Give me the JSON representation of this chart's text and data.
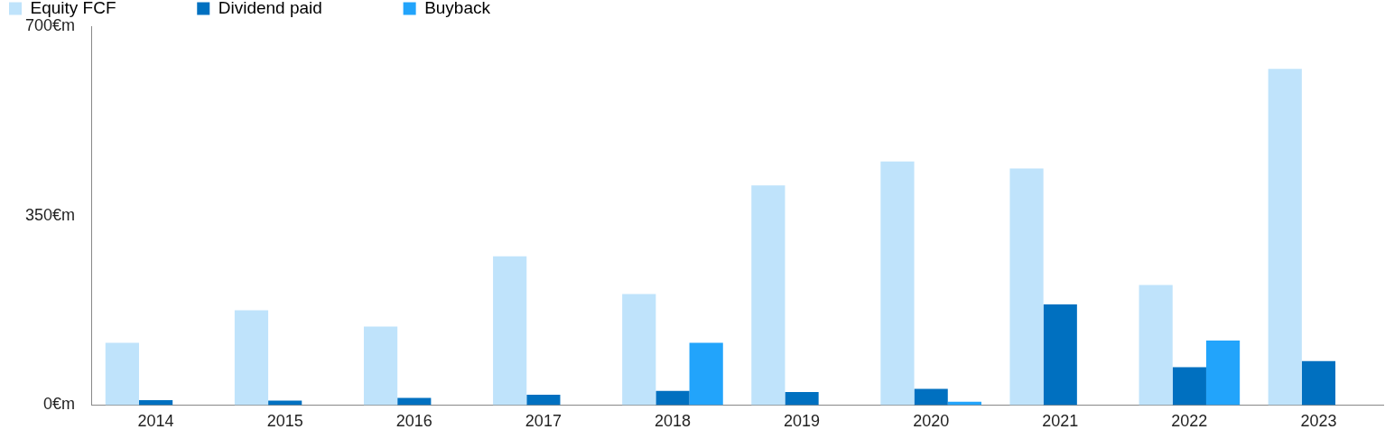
{
  "chart_data": {
    "type": "bar",
    "categories": [
      "2014",
      "2015",
      "2016",
      "2017",
      "2018",
      "2019",
      "2020",
      "2021",
      "2022",
      "2023"
    ],
    "series": [
      {
        "name": "Equity FCF",
        "color": "#bfe3fb",
        "values": [
          115,
          175,
          145,
          275,
          205,
          406,
          450,
          437,
          222,
          621
        ]
      },
      {
        "name": "Dividend paid",
        "color": "#0070c0",
        "values": [
          9,
          8,
          13,
          19,
          26,
          24,
          30,
          186,
          70,
          81
        ]
      },
      {
        "name": "Buyback",
        "color": "#22a4fb",
        "values": [
          null,
          null,
          null,
          null,
          115,
          null,
          6,
          null,
          119,
          null
        ]
      }
    ],
    "ylim": [
      0,
      700
    ],
    "yticks": [
      {
        "value": 0,
        "label": "0€m"
      },
      {
        "value": 350,
        "label": "350€m"
      },
      {
        "value": 700,
        "label": "700€m"
      }
    ],
    "grid": false,
    "legend": "top left"
  }
}
